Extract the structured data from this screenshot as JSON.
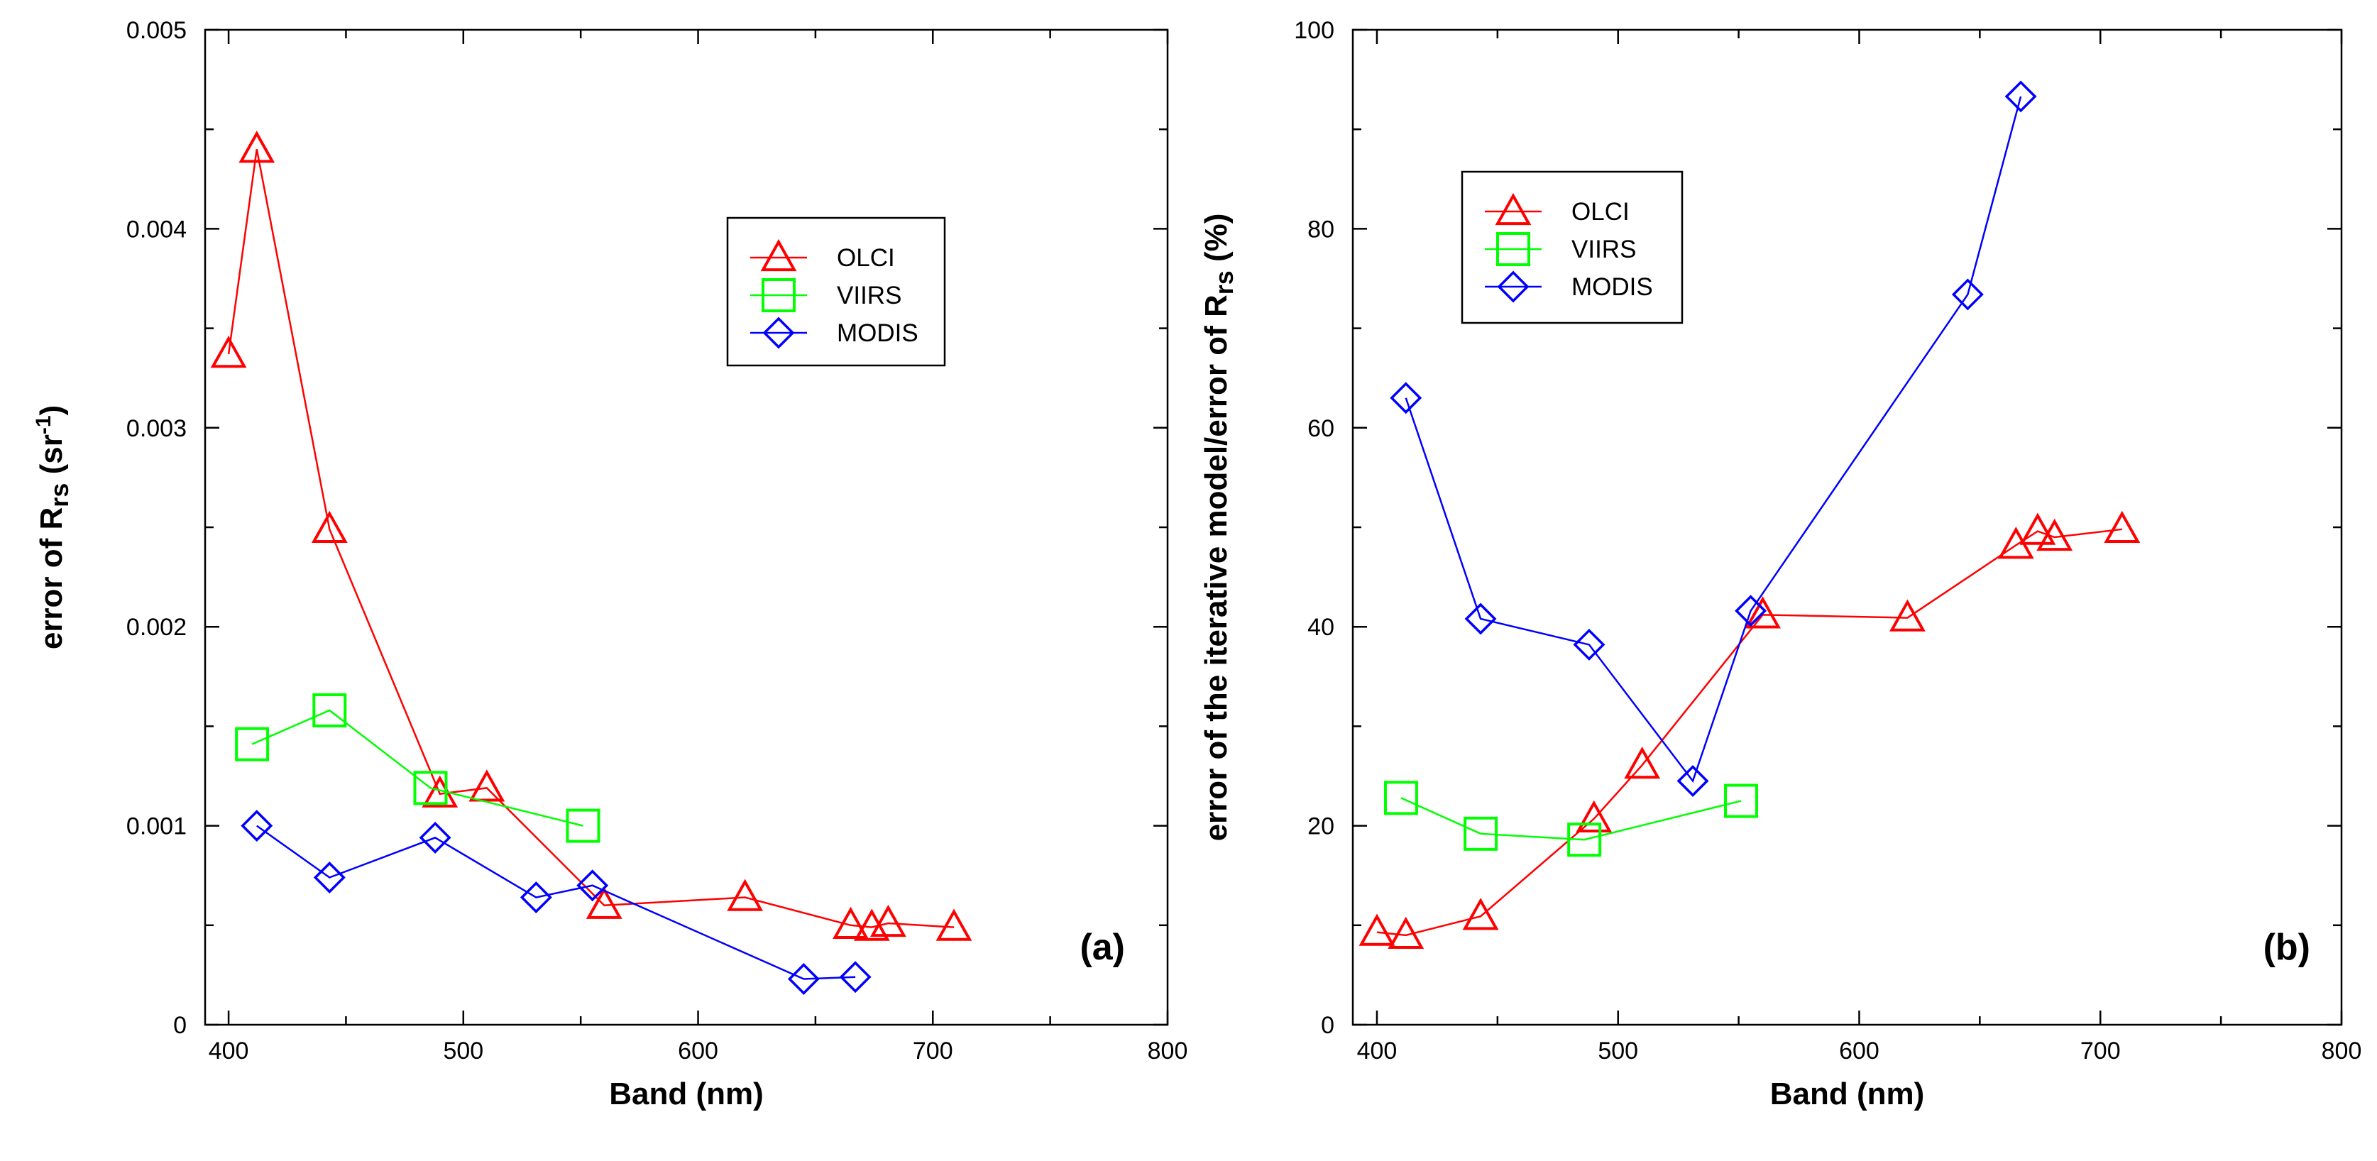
{
  "chart_data": [
    {
      "type": "line",
      "panel_label": "(a)",
      "xlabel": "Band (nm)",
      "ylabel_main": "error of R",
      "ylabel_sub": "rs",
      "ylabel_suffix_open": " (sr",
      "ylabel_sup": "-1",
      "ylabel_suffix_close": ")",
      "xlim": [
        390,
        800
      ],
      "ylim": [
        0,
        0.005
      ],
      "x_ticks": [
        400,
        500,
        600,
        700,
        800
      ],
      "x_tick_labels": [
        "400",
        "500",
        "600",
        "700",
        "800"
      ],
      "y_ticks": [
        0,
        0.001,
        0.002,
        0.003,
        0.004,
        0.005
      ],
      "y_tick_labels": [
        "0",
        "0.001",
        "0.002",
        "0.003",
        "0.004",
        "0.005"
      ],
      "legend_position": "upper-right",
      "series": [
        {
          "name": "OLCI",
          "color": "#ff0000",
          "marker": "triangle",
          "x": [
            400,
            412,
            443,
            490,
            510,
            560,
            620,
            665,
            674,
            681,
            709
          ],
          "y": [
            0.00337,
            0.0044,
            0.00249,
            0.00116,
            0.00119,
            0.0006,
            0.00064,
            0.0005,
            0.00049,
            0.00051,
            0.00049
          ]
        },
        {
          "name": "VIIRS",
          "color": "#00ff00",
          "marker": "square",
          "x": [
            410,
            443,
            486,
            551
          ],
          "y": [
            0.00141,
            0.00158,
            0.00119,
            0.001
          ]
        },
        {
          "name": "MODIS",
          "color": "#0000ff",
          "marker": "diamond",
          "x": [
            412,
            443,
            488,
            531,
            555,
            645,
            667
          ],
          "y": [
            0.001,
            0.00074,
            0.00094,
            0.00064,
            0.0007,
            0.00023,
            0.00024
          ]
        }
      ]
    },
    {
      "type": "line",
      "panel_label": "(b)",
      "xlabel": "Band (nm)",
      "ylabel_main": "error of the iterative model/error of R",
      "ylabel_sub": "rs",
      "ylabel_suffix_open": " (%)",
      "ylabel_sup": "",
      "ylabel_suffix_close": "",
      "xlim": [
        390,
        800
      ],
      "ylim": [
        0,
        100
      ],
      "x_ticks": [
        400,
        500,
        600,
        700,
        800
      ],
      "x_tick_labels": [
        "400",
        "500",
        "600",
        "700",
        "800"
      ],
      "y_ticks": [
        0,
        20,
        40,
        60,
        80,
        100
      ],
      "y_tick_labels": [
        "0",
        "20",
        "40",
        "60",
        "80",
        "100"
      ],
      "legend_position": "upper-left",
      "series": [
        {
          "name": "OLCI",
          "color": "#ff0000",
          "marker": "triangle",
          "x": [
            400,
            412,
            443,
            490,
            510,
            560,
            620,
            665,
            674,
            681,
            709
          ],
          "y": [
            9.3,
            9.0,
            10.9,
            20.7,
            26.1,
            41.2,
            40.9,
            48.2,
            49.6,
            49.0,
            49.8
          ]
        },
        {
          "name": "VIIRS",
          "color": "#00ff00",
          "marker": "square",
          "x": [
            410,
            443,
            486,
            551
          ],
          "y": [
            22.8,
            19.2,
            18.6,
            22.5
          ]
        },
        {
          "name": "MODIS",
          "color": "#0000ff",
          "marker": "diamond",
          "x": [
            412,
            443,
            488,
            531,
            555,
            645,
            667
          ],
          "y": [
            63.0,
            40.8,
            38.2,
            24.5,
            41.6,
            73.4,
            93.3
          ]
        }
      ]
    }
  ]
}
